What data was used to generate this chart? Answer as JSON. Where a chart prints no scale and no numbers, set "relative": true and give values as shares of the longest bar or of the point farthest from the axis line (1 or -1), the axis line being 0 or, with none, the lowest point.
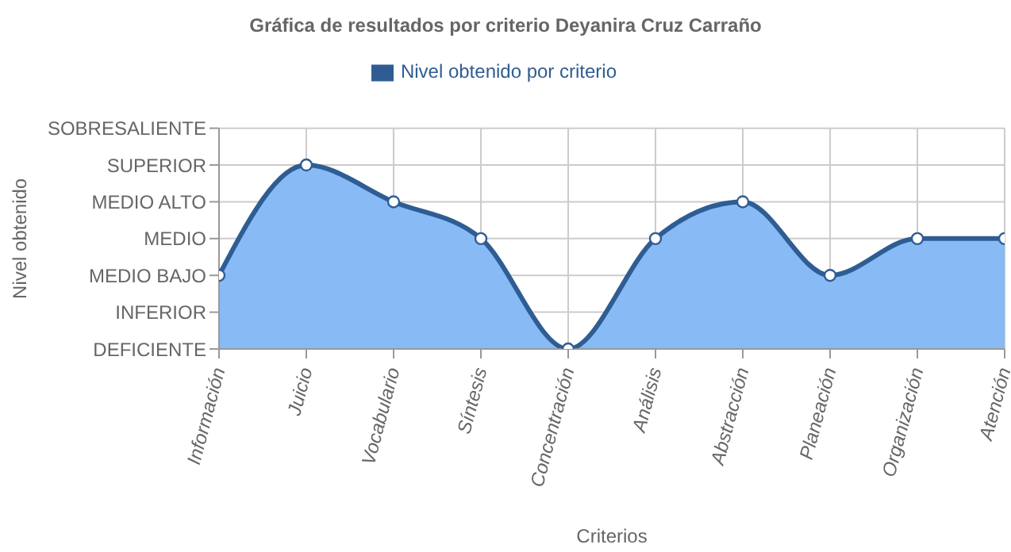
{
  "chart_data": {
    "type": "area",
    "title": "Gráfica de resultados por criterio Deyanira Cruz Carraño",
    "xlabel": "Criterios",
    "categories": [
      "Información",
      "Juicio",
      "Vocabulario",
      "Síntesis",
      "Concentración",
      "Análisis",
      "Abstracción",
      "Planeación",
      "Organización",
      "Atención"
    ],
    "series": [
      {
        "name": "Nivel obtenido por criterio",
        "color": "#88baf5",
        "values": [
          0.4,
          1,
          0.8,
          0.6,
          0,
          0.6,
          0.8,
          0.4,
          0.6,
          0.6
        ]
      }
    ],
    "relative": true,
    "annotations": [
      "DEFICIENTE",
      "INFERIOR",
      "MEDIO BAJO",
      "MEDIO",
      "MEDIO ALTO",
      "SUPERIOR",
      "SOBRESALIENTE",
      "Nivel obtenido"
    ],
    "grid": true,
    "legend": "top",
    "marker": "circle"
  }
}
